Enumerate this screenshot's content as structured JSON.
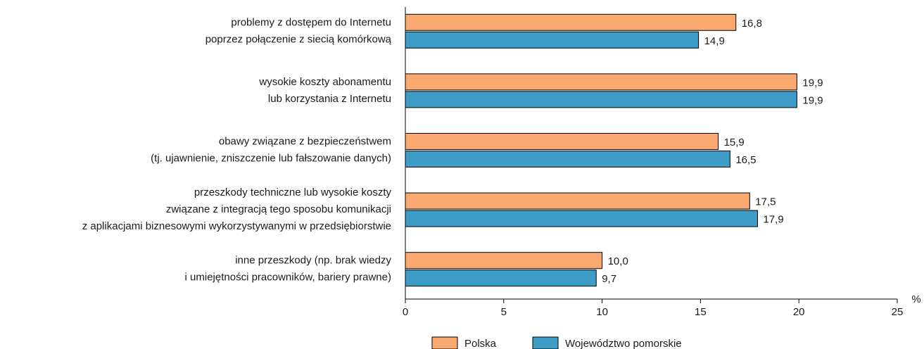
{
  "chart_data": {
    "type": "bar",
    "orientation": "horizontal",
    "categories": [
      [
        "problemy z dostępem do Internetu",
        "poprzez połączenie z siecią komórkową"
      ],
      [
        "wysokie koszty abonamentu",
        "lub korzystania z Internetu"
      ],
      [
        "obawy związane z bezpieczeństwem",
        "(tj. ujawnienie, zniszczenie lub fałszowanie danych)"
      ],
      [
        "przeszkody techniczne lub wysokie koszty",
        "związane z integracją tego sposobu komunikacji",
        "z aplikacjami biznesowymi wykorzystywanymi w przedsiębiorstwie"
      ],
      [
        "inne przeszkody (np. brak wiedzy",
        "i umiejętności pracowników, bariery prawne)"
      ]
    ],
    "series": [
      {
        "name": "Polska",
        "color": "#f9a870",
        "values": [
          16.8,
          19.9,
          15.9,
          17.5,
          10.0
        ],
        "value_labels": [
          "16,8",
          "19,9",
          "15,9",
          "17,5",
          "10,0"
        ]
      },
      {
        "name": "Województwo pomorskie",
        "color": "#3d9dc7",
        "values": [
          14.9,
          19.9,
          16.5,
          17.9,
          9.7
        ],
        "value_labels": [
          "14,9",
          "19,9",
          "16,5",
          "17,9",
          "9,7"
        ]
      }
    ],
    "xlim": [
      0,
      25
    ],
    "xticks": [
      0,
      5,
      10,
      15,
      20,
      25
    ],
    "x_unit": "%",
    "legend": "bottom"
  }
}
